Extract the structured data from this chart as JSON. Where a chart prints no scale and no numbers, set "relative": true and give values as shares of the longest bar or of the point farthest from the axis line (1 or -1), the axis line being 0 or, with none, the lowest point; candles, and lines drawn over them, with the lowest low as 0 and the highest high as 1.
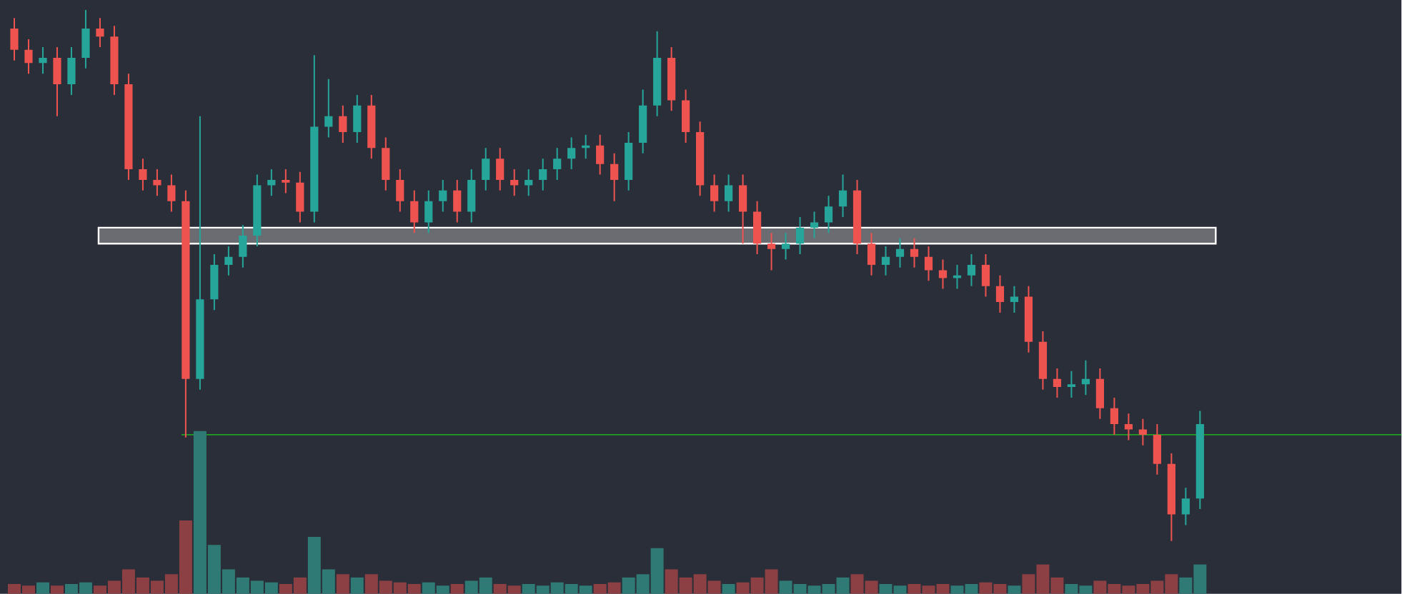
{
  "chart_data": [
    {
      "type": "candlestick",
      "relative": true,
      "categories": [
        null,
        null,
        null,
        null,
        null,
        null,
        null,
        null,
        null,
        null,
        null,
        null,
        null,
        null,
        null,
        null,
        null,
        null,
        null,
        null,
        null,
        null,
        null,
        null,
        null,
        null,
        null,
        null,
        null,
        null,
        null,
        null,
        null,
        null,
        null,
        null,
        null,
        null,
        null,
        null,
        null,
        null,
        null,
        null,
        null,
        null,
        null,
        null,
        null,
        null,
        null,
        null,
        null,
        null,
        null,
        null,
        null,
        null,
        null,
        null,
        null,
        null,
        null,
        null,
        null,
        null,
        null,
        null,
        null,
        null,
        null,
        null,
        null,
        null,
        null,
        null,
        null,
        null,
        null,
        null,
        null,
        null,
        null,
        null
      ],
      "ohlc": [
        [
          0.965,
          0.985,
          0.905,
          0.925
        ],
        [
          0.925,
          0.945,
          0.88,
          0.9
        ],
        [
          0.9,
          0.93,
          0.88,
          0.91
        ],
        [
          0.91,
          0.93,
          0.8,
          0.86
        ],
        [
          0.86,
          0.93,
          0.84,
          0.91
        ],
        [
          0.91,
          1.0,
          0.89,
          0.965
        ],
        [
          0.965,
          0.985,
          0.93,
          0.95
        ],
        [
          0.95,
          0.97,
          0.84,
          0.86
        ],
        [
          0.86,
          0.88,
          0.68,
          0.7
        ],
        [
          0.7,
          0.72,
          0.66,
          0.68
        ],
        [
          0.68,
          0.7,
          0.65,
          0.67
        ],
        [
          0.67,
          0.69,
          0.62,
          0.64
        ],
        [
          0.64,
          0.66,
          0.195,
          0.305
        ],
        [
          0.305,
          0.8,
          0.285,
          0.455
        ],
        [
          0.455,
          0.54,
          0.435,
          0.52
        ],
        [
          0.52,
          0.555,
          0.5,
          0.535
        ],
        [
          0.535,
          0.595,
          0.515,
          0.575
        ],
        [
          0.575,
          0.69,
          0.555,
          0.67
        ],
        [
          0.67,
          0.7,
          0.65,
          0.68
        ],
        [
          0.68,
          0.7,
          0.655,
          0.675
        ],
        [
          0.675,
          0.695,
          0.6,
          0.62
        ],
        [
          0.62,
          0.915,
          0.6,
          0.78
        ],
        [
          0.78,
          0.87,
          0.76,
          0.8
        ],
        [
          0.8,
          0.82,
          0.75,
          0.77
        ],
        [
          0.77,
          0.84,
          0.75,
          0.82
        ],
        [
          0.82,
          0.84,
          0.72,
          0.74
        ],
        [
          0.74,
          0.76,
          0.66,
          0.68
        ],
        [
          0.68,
          0.7,
          0.62,
          0.64
        ],
        [
          0.64,
          0.66,
          0.58,
          0.6
        ],
        [
          0.6,
          0.66,
          0.58,
          0.64
        ],
        [
          0.64,
          0.68,
          0.62,
          0.66
        ],
        [
          0.66,
          0.68,
          0.6,
          0.62
        ],
        [
          0.62,
          0.7,
          0.6,
          0.68
        ],
        [
          0.68,
          0.74,
          0.66,
          0.72
        ],
        [
          0.72,
          0.74,
          0.66,
          0.68
        ],
        [
          0.68,
          0.7,
          0.65,
          0.67
        ],
        [
          0.67,
          0.7,
          0.65,
          0.68
        ],
        [
          0.68,
          0.72,
          0.66,
          0.7
        ],
        [
          0.7,
          0.74,
          0.68,
          0.72
        ],
        [
          0.72,
          0.76,
          0.7,
          0.74
        ],
        [
          0.74,
          0.765,
          0.72,
          0.745
        ],
        [
          0.745,
          0.765,
          0.69,
          0.71
        ],
        [
          0.71,
          0.73,
          0.64,
          0.68
        ],
        [
          0.68,
          0.77,
          0.66,
          0.75
        ],
        [
          0.75,
          0.85,
          0.73,
          0.82
        ],
        [
          0.82,
          0.96,
          0.8,
          0.91
        ],
        [
          0.91,
          0.93,
          0.81,
          0.83
        ],
        [
          0.83,
          0.85,
          0.75,
          0.77
        ],
        [
          0.77,
          0.79,
          0.65,
          0.67
        ],
        [
          0.67,
          0.69,
          0.62,
          0.64
        ],
        [
          0.64,
          0.69,
          0.62,
          0.67
        ],
        [
          0.67,
          0.69,
          0.56,
          0.62
        ],
        [
          0.62,
          0.64,
          0.54,
          0.56
        ],
        [
          0.56,
          0.58,
          0.51,
          0.55
        ],
        [
          0.55,
          0.58,
          0.53,
          0.56
        ],
        [
          0.56,
          0.61,
          0.54,
          0.59
        ],
        [
          0.59,
          0.62,
          0.57,
          0.6
        ],
        [
          0.6,
          0.65,
          0.58,
          0.63
        ],
        [
          0.63,
          0.69,
          0.61,
          0.66
        ],
        [
          0.66,
          0.68,
          0.54,
          0.56
        ],
        [
          0.56,
          0.58,
          0.5,
          0.52
        ],
        [
          0.52,
          0.555,
          0.5,
          0.535
        ],
        [
          0.535,
          0.57,
          0.515,
          0.55
        ],
        [
          0.55,
          0.57,
          0.515,
          0.535
        ],
        [
          0.535,
          0.555,
          0.49,
          0.51
        ],
        [
          0.51,
          0.53,
          0.475,
          0.495
        ],
        [
          0.495,
          0.52,
          0.475,
          0.5
        ],
        [
          0.5,
          0.54,
          0.48,
          0.52
        ],
        [
          0.52,
          0.54,
          0.46,
          0.48
        ],
        [
          0.48,
          0.5,
          0.43,
          0.45
        ],
        [
          0.45,
          0.48,
          0.43,
          0.46
        ],
        [
          0.46,
          0.48,
          0.355,
          0.375
        ],
        [
          0.375,
          0.395,
          0.285,
          0.305
        ],
        [
          0.305,
          0.325,
          0.27,
          0.29
        ],
        [
          0.29,
          0.32,
          0.27,
          0.295
        ],
        [
          0.295,
          0.34,
          0.275,
          0.305
        ],
        [
          0.305,
          0.325,
          0.23,
          0.25
        ],
        [
          0.25,
          0.27,
          0.2,
          0.22
        ],
        [
          0.22,
          0.24,
          0.19,
          0.21
        ],
        [
          0.21,
          0.23,
          0.18,
          0.2
        ],
        [
          0.2,
          0.22,
          0.125,
          0.145
        ],
        [
          0.145,
          0.165,
          0.0,
          0.05
        ],
        [
          0.05,
          0.1,
          0.03,
          0.08
        ],
        [
          0.08,
          0.245,
          0.06,
          0.22
        ]
      ],
      "colors": [
        "#ef5350",
        "#ef5350",
        "#26a69a",
        "#ef5350",
        "#26a69a",
        "#26a69a",
        "#ef5350",
        "#ef5350",
        "#ef5350",
        "#ef5350",
        "#ef5350",
        "#ef5350",
        "#ef5350",
        "#26a69a",
        "#26a69a",
        "#26a69a",
        "#26a69a",
        "#26a69a",
        "#26a69a",
        "#ef5350",
        "#ef5350",
        "#26a69a",
        "#26a69a",
        "#ef5350",
        "#26a69a",
        "#ef5350",
        "#ef5350",
        "#ef5350",
        "#ef5350",
        "#26a69a",
        "#26a69a",
        "#ef5350",
        "#26a69a",
        "#26a69a",
        "#ef5350",
        "#ef5350",
        "#26a69a",
        "#26a69a",
        "#26a69a",
        "#26a69a",
        "#26a69a",
        "#ef5350",
        "#ef5350",
        "#26a69a",
        "#26a69a",
        "#26a69a",
        "#ef5350",
        "#ef5350",
        "#ef5350",
        "#ef5350",
        "#26a69a",
        "#ef5350",
        "#ef5350",
        "#ef5350",
        "#26a69a",
        "#26a69a",
        "#26a69a",
        "#26a69a",
        "#26a69a",
        "#ef5350",
        "#ef5350",
        "#26a69a",
        "#26a69a",
        "#ef5350",
        "#ef5350",
        "#ef5350",
        "#26a69a",
        "#26a69a",
        "#ef5350",
        "#ef5350",
        "#26a69a",
        "#ef5350",
        "#ef5350",
        "#ef5350",
        "#26a69a",
        "#26a69a",
        "#ef5350",
        "#ef5350",
        "#ef5350",
        "#ef5350",
        "#ef5350",
        "#ef5350",
        "#26a69a",
        "#26a69a"
      ],
      "ref_lines": [
        {
          "axis": "y",
          "value": 0.2,
          "color": "#1ec81e"
        }
      ],
      "bands": [
        {
          "axis": "y",
          "from": 0.56,
          "to": 0.59,
          "color": "#6b6c72"
        }
      ]
    },
    {
      "type": "bar",
      "relative": true,
      "categories": [
        null,
        null,
        null,
        null,
        null,
        null,
        null,
        null,
        null,
        null,
        null,
        null,
        null,
        null,
        null,
        null,
        null,
        null,
        null,
        null,
        null,
        null,
        null,
        null,
        null,
        null,
        null,
        null,
        null,
        null,
        null,
        null,
        null,
        null,
        null,
        null,
        null,
        null,
        null,
        null,
        null,
        null,
        null,
        null,
        null,
        null,
        null,
        null,
        null,
        null,
        null,
        null,
        null,
        null,
        null,
        null,
        null,
        null,
        null,
        null,
        null,
        null,
        null,
        null,
        null,
        null,
        null,
        null,
        null,
        null,
        null,
        null,
        null,
        null,
        null,
        null,
        null,
        null,
        null,
        null,
        null,
        null,
        null,
        null
      ],
      "values": [
        0.06,
        0.05,
        0.07,
        0.05,
        0.06,
        0.07,
        0.05,
        0.08,
        0.15,
        0.1,
        0.08,
        0.12,
        0.45,
        1.0,
        0.3,
        0.15,
        0.1,
        0.08,
        0.07,
        0.06,
        0.1,
        0.35,
        0.15,
        0.12,
        0.1,
        0.12,
        0.08,
        0.07,
        0.06,
        0.07,
        0.05,
        0.06,
        0.08,
        0.1,
        0.06,
        0.05,
        0.06,
        0.05,
        0.07,
        0.06,
        0.05,
        0.06,
        0.07,
        0.1,
        0.12,
        0.28,
        0.15,
        0.1,
        0.12,
        0.08,
        0.06,
        0.07,
        0.1,
        0.15,
        0.08,
        0.06,
        0.05,
        0.06,
        0.1,
        0.12,
        0.08,
        0.06,
        0.05,
        0.06,
        0.05,
        0.06,
        0.05,
        0.06,
        0.07,
        0.06,
        0.05,
        0.12,
        0.18,
        0.1,
        0.06,
        0.05,
        0.08,
        0.06,
        0.05,
        0.06,
        0.08,
        0.12,
        0.1,
        0.18
      ],
      "colors": [
        "#8c4044",
        "#8c4044",
        "#2f7a74",
        "#8c4044",
        "#2f7a74",
        "#2f7a74",
        "#8c4044",
        "#8c4044",
        "#8c4044",
        "#8c4044",
        "#8c4044",
        "#8c4044",
        "#8c4044",
        "#2f7a74",
        "#2f7a74",
        "#2f7a74",
        "#2f7a74",
        "#2f7a74",
        "#2f7a74",
        "#8c4044",
        "#8c4044",
        "#2f7a74",
        "#2f7a74",
        "#8c4044",
        "#2f7a74",
        "#8c4044",
        "#8c4044",
        "#8c4044",
        "#8c4044",
        "#2f7a74",
        "#2f7a74",
        "#8c4044",
        "#2f7a74",
        "#2f7a74",
        "#8c4044",
        "#8c4044",
        "#2f7a74",
        "#2f7a74",
        "#2f7a74",
        "#2f7a74",
        "#2f7a74",
        "#8c4044",
        "#8c4044",
        "#2f7a74",
        "#2f7a74",
        "#2f7a74",
        "#8c4044",
        "#8c4044",
        "#8c4044",
        "#8c4044",
        "#2f7a74",
        "#8c4044",
        "#8c4044",
        "#8c4044",
        "#2f7a74",
        "#2f7a74",
        "#2f7a74",
        "#2f7a74",
        "#2f7a74",
        "#8c4044",
        "#8c4044",
        "#2f7a74",
        "#2f7a74",
        "#8c4044",
        "#8c4044",
        "#8c4044",
        "#2f7a74",
        "#2f7a74",
        "#8c4044",
        "#8c4044",
        "#2f7a74",
        "#8c4044",
        "#8c4044",
        "#8c4044",
        "#2f7a74",
        "#2f7a74",
        "#8c4044",
        "#8c4044",
        "#8c4044",
        "#8c4044",
        "#8c4044",
        "#8c4044",
        "#2f7a74",
        "#2f7a74"
      ]
    }
  ]
}
